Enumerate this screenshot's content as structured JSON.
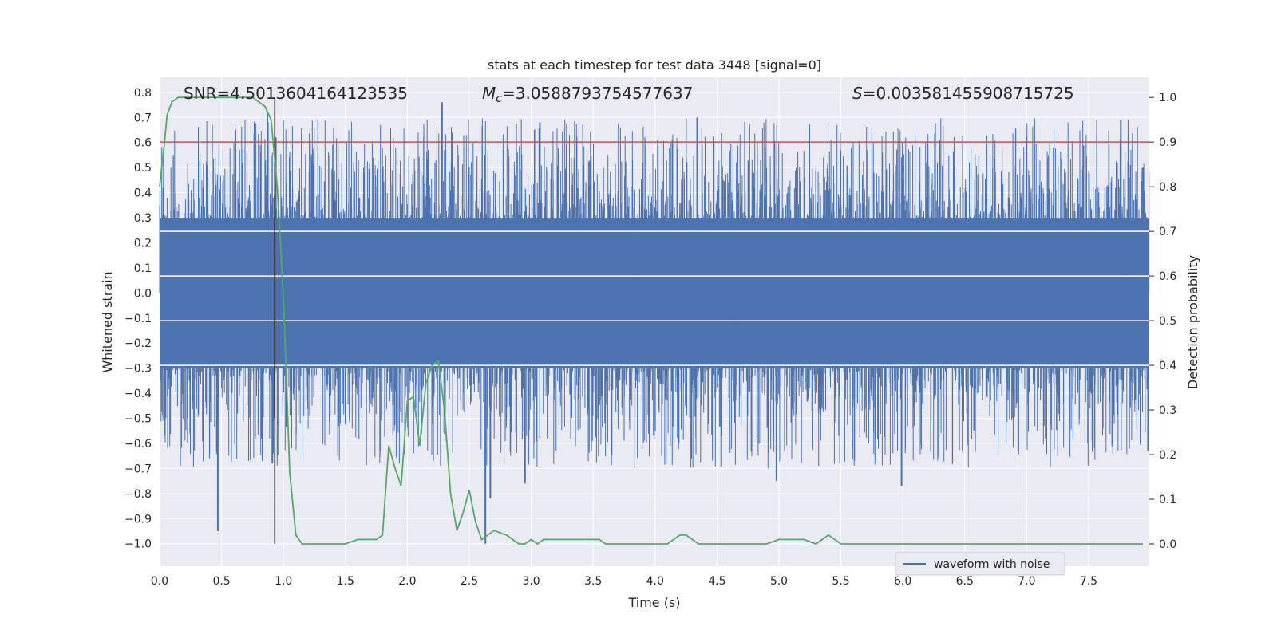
{
  "chart_data": {
    "type": "line",
    "title": "stats at each timestep for test data 3448 [signal=0]",
    "xlabel": "Time (s)",
    "ylabel": "Whitened strain",
    "y2label": "Detection probability",
    "xlim": [
      0.0,
      7.99
    ],
    "ylim": [
      -1.09,
      0.86
    ],
    "y2lim": [
      -0.05,
      1.045
    ],
    "x_ticks": [
      0.0,
      0.5,
      1.0,
      1.5,
      2.0,
      2.5,
      3.0,
      3.5,
      4.0,
      4.5,
      5.0,
      5.5,
      6.0,
      6.5,
      7.0,
      7.5
    ],
    "x_tick_labels": [
      "0.0",
      "0.5",
      "1.0",
      "1.5",
      "2.0",
      "2.5",
      "3.0",
      "3.5",
      "4.0",
      "4.5",
      "5.0",
      "5.5",
      "6.0",
      "6.5",
      "7.0",
      "7.5"
    ],
    "y_ticks": [
      0.8,
      0.7,
      0.6,
      0.5,
      0.4,
      0.3,
      0.2,
      0.1,
      0.0,
      -0.1,
      -0.2,
      -0.3,
      -0.4,
      -0.5,
      -0.6,
      -0.7,
      -0.8,
      -0.9,
      -1.0
    ],
    "y_tick_labels": [
      "0.8",
      "0.7",
      "0.6",
      "0.5",
      "0.4",
      "0.3",
      "0.2",
      "0.1",
      "0.0",
      "−0.1",
      "−0.2",
      "−0.3",
      "−0.4",
      "−0.5",
      "−0.6",
      "−0.7",
      "−0.8",
      "−0.9",
      "−1.0"
    ],
    "y2_ticks": [
      1.0,
      0.9,
      0.8,
      0.7,
      0.6,
      0.5,
      0.4,
      0.3,
      0.2,
      0.1,
      0.0
    ],
    "y2_tick_labels": [
      "1.0",
      "0.9",
      "0.8",
      "0.7",
      "0.6",
      "0.5",
      "0.4",
      "0.3",
      "0.2",
      "0.1",
      "0.0"
    ],
    "annotations": {
      "snr": "SNR=4.5013604164123535",
      "mc_symbol": "M",
      "mc_sub": "c",
      "mc_value": "=3.0588793754577637",
      "s_symbol": "S",
      "s_value": "=0.003581455908715725"
    },
    "legend": {
      "label": "waveform with noise",
      "location": "lower-right"
    },
    "threshold_y2": 0.9,
    "marker_x": 0.93,
    "marker_y_range": [
      -1.0,
      0.78
    ],
    "waveform": {
      "name": "waveform with noise",
      "sample_rate_hz": 512,
      "core_range": [
        -0.3,
        0.3
      ],
      "spikes": [
        {
          "x": 0.47,
          "y": -0.95
        },
        {
          "x": 0.87,
          "y": 0.72
        },
        {
          "x": 0.91,
          "y": -0.68
        },
        {
          "x": 2.28,
          "y": 0.76
        },
        {
          "x": 2.63,
          "y": -1.0
        },
        {
          "x": 2.67,
          "y": -0.82
        },
        {
          "x": 2.95,
          "y": -0.76
        },
        {
          "x": 3.07,
          "y": 0.68
        },
        {
          "x": 4.34,
          "y": 0.7
        },
        {
          "x": 4.98,
          "y": -0.75
        },
        {
          "x": 5.99,
          "y": -0.77
        },
        {
          "x": 7.76,
          "y": 0.69
        },
        {
          "x": 7.94,
          "y": 0.5
        },
        {
          "x": 7.98,
          "y": -0.63
        },
        {
          "x": 0.03,
          "y": 0.42
        }
      ]
    },
    "probability": {
      "name": "Detection probability",
      "x": [
        0.0,
        0.04,
        0.06,
        0.1,
        0.15,
        0.2,
        0.3,
        0.4,
        0.5,
        0.6,
        0.7,
        0.75,
        0.8,
        0.85,
        0.9,
        0.95,
        1.0,
        1.05,
        1.1,
        1.15,
        1.2,
        1.3,
        1.4,
        1.5,
        1.6,
        1.7,
        1.75,
        1.8,
        1.85,
        1.9,
        1.95,
        2.0,
        2.05,
        2.1,
        2.15,
        2.2,
        2.25,
        2.3,
        2.35,
        2.4,
        2.45,
        2.5,
        2.55,
        2.6,
        2.65,
        2.7,
        2.8,
        2.85,
        2.9,
        2.95,
        3.0,
        3.05,
        3.1,
        3.15,
        3.2,
        3.3,
        3.35,
        3.4,
        3.45,
        3.5,
        3.55,
        3.6,
        3.7,
        3.8,
        3.9,
        4.0,
        4.1,
        4.2,
        4.25,
        4.3,
        4.35,
        4.4,
        4.5,
        4.6,
        4.7,
        4.8,
        4.9,
        5.0,
        5.1,
        5.2,
        5.3,
        5.4,
        5.45,
        5.5,
        5.6,
        5.7,
        5.8,
        5.9,
        6.0,
        6.1,
        6.2,
        6.3,
        6.5,
        6.7,
        6.9,
        7.0,
        7.2,
        7.4,
        7.6,
        7.8,
        7.94
      ],
      "y": [
        0.8,
        0.9,
        0.96,
        0.99,
        1.0,
        1.0,
        1.0,
        1.0,
        1.0,
        1.0,
        1.0,
        1.0,
        0.99,
        0.98,
        0.95,
        0.8,
        0.55,
        0.16,
        0.02,
        0.0,
        0.0,
        0.0,
        0.0,
        0.0,
        0.01,
        0.01,
        0.01,
        0.02,
        0.22,
        0.17,
        0.13,
        0.32,
        0.33,
        0.22,
        0.36,
        0.4,
        0.41,
        0.3,
        0.11,
        0.03,
        0.07,
        0.12,
        0.05,
        0.01,
        0.02,
        0.03,
        0.02,
        0.01,
        0.0,
        0.0,
        0.01,
        0.0,
        0.01,
        0.01,
        0.01,
        0.01,
        0.01,
        0.01,
        0.01,
        0.01,
        0.01,
        0.0,
        0.0,
        0.0,
        0.0,
        0.0,
        0.0,
        0.02,
        0.02,
        0.01,
        0.0,
        0.0,
        0.0,
        0.0,
        0.0,
        0.0,
        0.0,
        0.01,
        0.01,
        0.01,
        0.0,
        0.02,
        0.01,
        0.0,
        0.0,
        0.0,
        0.0,
        0.0,
        0.0,
        0.0,
        0.0,
        0.0,
        0.0,
        0.0,
        0.0,
        0.0,
        0.0,
        0.0,
        0.0,
        0.0,
        0.0
      ]
    },
    "style": {
      "background": "#eaeaf2",
      "grid": "#ffffff",
      "waveform_color": "#4c72b0",
      "probability_color": "#55a868",
      "threshold_color": "#c44e52",
      "marker_color": "#000000"
    }
  }
}
